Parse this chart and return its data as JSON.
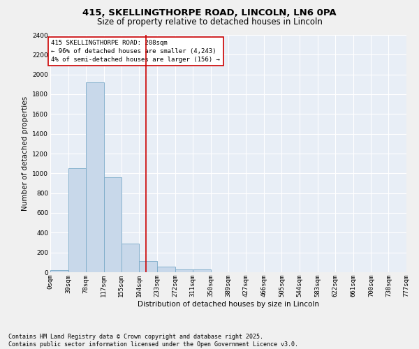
{
  "title_line1": "415, SKELLINGTHORPE ROAD, LINCOLN, LN6 0PA",
  "title_line2": "Size of property relative to detached houses in Lincoln",
  "xlabel": "Distribution of detached houses by size in Lincoln",
  "ylabel": "Number of detached properties",
  "bar_color": "#c8d8ea",
  "bar_edge_color": "#7aaac8",
  "background_color": "#e8eef6",
  "fig_background": "#f0f0f0",
  "grid_color": "#ffffff",
  "bin_edges": [
    0,
    39,
    78,
    117,
    155,
    194,
    233,
    272,
    311,
    350,
    389,
    427,
    466,
    505,
    544,
    583,
    622,
    661,
    700,
    738,
    777
  ],
  "bin_labels": [
    "0sqm",
    "39sqm",
    "78sqm",
    "117sqm",
    "155sqm",
    "194sqm",
    "233sqm",
    "272sqm",
    "311sqm",
    "350sqm",
    "389sqm",
    "427sqm",
    "466sqm",
    "505sqm",
    "544sqm",
    "583sqm",
    "622sqm",
    "661sqm",
    "700sqm",
    "738sqm",
    "777sqm"
  ],
  "bar_heights": [
    20,
    1050,
    1920,
    960,
    290,
    110,
    55,
    30,
    25,
    0,
    0,
    0,
    0,
    0,
    0,
    0,
    0,
    0,
    0,
    0
  ],
  "property_size": 208,
  "red_line_color": "#cc0000",
  "annotation_text": "415 SKELLINGTHORPE ROAD: 208sqm\n← 96% of detached houses are smaller (4,243)\n4% of semi-detached houses are larger (156) →",
  "annotation_box_color": "#cc0000",
  "ylim": [
    0,
    2400
  ],
  "yticks": [
    0,
    200,
    400,
    600,
    800,
    1000,
    1200,
    1400,
    1600,
    1800,
    2000,
    2200,
    2400
  ],
  "footer_line1": "Contains HM Land Registry data © Crown copyright and database right 2025.",
  "footer_line2": "Contains public sector information licensed under the Open Government Licence v3.0.",
  "title_fontsize": 9.5,
  "subtitle_fontsize": 8.5,
  "axis_label_fontsize": 7.5,
  "tick_fontsize": 6.5,
  "annotation_fontsize": 6.5,
  "footer_fontsize": 6.0,
  "ylabel_fontsize": 7.5
}
